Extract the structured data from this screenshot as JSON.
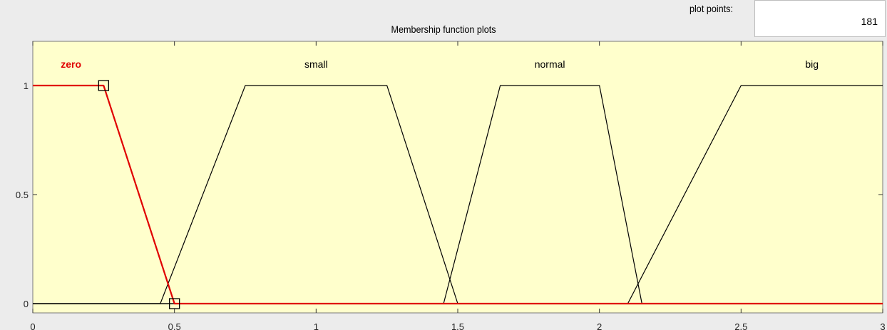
{
  "panel": {
    "title": "Membership function plots",
    "plot_points_label": "plot points:",
    "plot_points_value": "181"
  },
  "colors": {
    "plot_background": "#ffffcc",
    "selected_function": "#e00000",
    "function_line": "#000000"
  },
  "chart_data": {
    "type": "line",
    "title": "Membership function plots",
    "xlabel": "",
    "ylabel": "",
    "xlim": [
      0,
      3
    ],
    "ylim": [
      -0.0,
      1.2
    ],
    "x_ticks": [
      "0",
      "0.5",
      "1",
      "1.5",
      "2",
      "2.5",
      "3"
    ],
    "y_ticks": [
      "0",
      "0.5",
      "1"
    ],
    "selected": "zero",
    "series": [
      {
        "name": "zero",
        "x": [
          0,
          0.25,
          0.5,
          3
        ],
        "y": [
          1,
          1,
          0,
          0
        ]
      },
      {
        "name": "small",
        "x": [
          0,
          0.45,
          0.75,
          1.25,
          1.5,
          3
        ],
        "y": [
          0,
          0,
          1,
          1,
          0,
          0
        ]
      },
      {
        "name": "normal",
        "x": [
          0,
          1.45,
          1.65,
          2.0,
          2.15,
          3
        ],
        "y": [
          0,
          0,
          1,
          1,
          0,
          0
        ]
      },
      {
        "name": "big",
        "x": [
          0,
          2.1,
          2.5,
          3
        ],
        "y": [
          0,
          0,
          1,
          1
        ]
      }
    ]
  }
}
